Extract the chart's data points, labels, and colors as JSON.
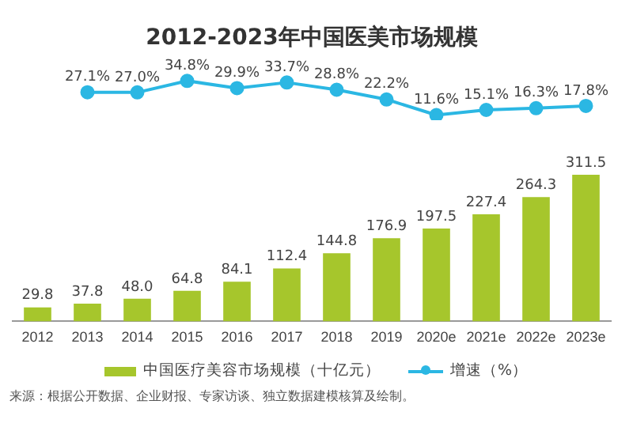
{
  "chart_data": [
    {
      "type": "line",
      "title": "2012-2023年中国医美市场规模",
      "categories": [
        null,
        null,
        null,
        null,
        null,
        null,
        null,
        null,
        null,
        null,
        null,
        null
      ],
      "series": [
        {
          "name": "增速（%）",
          "color": "#2bb7e3",
          "values": [
            null,
            27.1,
            27.0,
            34.8,
            29.9,
            33.7,
            28.8,
            22.2,
            11.6,
            15.1,
            16.3,
            17.8
          ],
          "value_labels": [
            null,
            "27.1%",
            "27.0%",
            "34.8%",
            "29.9%",
            "33.7%",
            "28.8%",
            "22.2%",
            "11.6%",
            "15.1%",
            "16.3%",
            "17.8%"
          ]
        }
      ],
      "grid": false,
      "legend": "bottom",
      "marker": "circle",
      "line_style": "solid",
      "tick_labels": false
    },
    {
      "type": "bar",
      "categories": [
        "2012",
        "2013",
        "2014",
        "2015",
        "2016",
        "2017",
        "2018",
        "2019",
        "2020e",
        "2021e",
        "2022e",
        "2023e"
      ],
      "series": [
        {
          "name": "中国医疗美容市场规模（十亿元）",
          "color": "#a6c62c",
          "values": [
            29.8,
            37.8,
            48.0,
            64.8,
            84.1,
            112.4,
            144.8,
            176.9,
            197.5,
            227.4,
            264.3,
            311.5
          ],
          "value_labels": [
            "29.8",
            "37.8",
            "48.0",
            "64.8",
            "84.1",
            "112.4",
            "144.8",
            "176.9",
            "197.5",
            "227.4",
            "264.3",
            "311.5"
          ]
        }
      ],
      "grid": false,
      "legend": "bottom",
      "tick_labels": "x",
      "annotations": [
        "来源：根据公开数据、企业财报、专家访谈、独立数据建模核算及绘制。"
      ]
    }
  ]
}
